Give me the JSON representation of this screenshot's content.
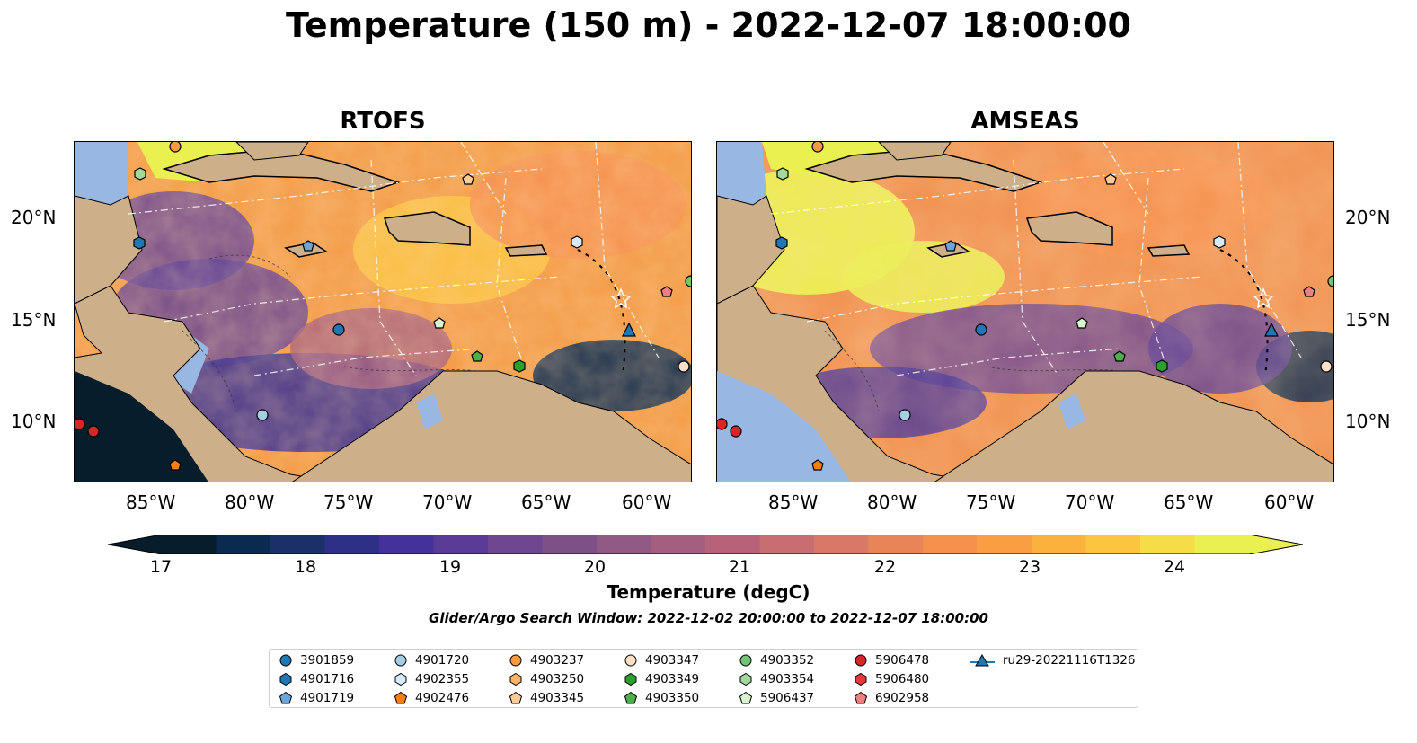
{
  "title": "Temperature (150 m) - 2022-12-07 18:00:00",
  "panels": [
    {
      "title": "RTOFS"
    },
    {
      "title": "AMSEAS"
    }
  ],
  "lon_ticks": [
    "85°W",
    "80°W",
    "75°W",
    "70°W",
    "65°W",
    "60°W"
  ],
  "lat_ticks": [
    "20°N",
    "15°N",
    "10°N"
  ],
  "colorbar": {
    "ticks": [
      "17",
      "18",
      "19",
      "20",
      "21",
      "22",
      "23",
      "24"
    ],
    "label": "Temperature (degC)",
    "range": [
      16.75,
      24.5
    ],
    "colors": [
      "#081d2b",
      "#0b2a4f",
      "#1b3069",
      "#2e2f87",
      "#44319a",
      "#5a3c97",
      "#6d4790",
      "#7e5088",
      "#905a84",
      "#a45e7f",
      "#b6637a",
      "#c86d72",
      "#d97866",
      "#e98459",
      "#f5904d",
      "#f99e43",
      "#fbb13d",
      "#fbc53f",
      "#f6dd47",
      "#eaf04f"
    ]
  },
  "subtitle": "Glider/Argo Search Window: 2022-12-02 20:00:00 to 2022-12-07 18:00:00",
  "legend": [
    {
      "label": "3901859",
      "marker": "circle",
      "color": "#1f77b4"
    },
    {
      "label": "4901716",
      "marker": "hexagon",
      "color": "#1f77b4"
    },
    {
      "label": "4901719",
      "marker": "pentagon",
      "color": "#6aa6d9"
    },
    {
      "label": "4901720",
      "marker": "circle",
      "color": "#a6cee3"
    },
    {
      "label": "4902355",
      "marker": "hexagon",
      "color": "#d6eaf8"
    },
    {
      "label": "4902476",
      "marker": "pentagon",
      "color": "#ff7f0e"
    },
    {
      "label": "4903237",
      "marker": "circle",
      "color": "#fd9a3c"
    },
    {
      "label": "4903250",
      "marker": "hexagon",
      "color": "#fdb462"
    },
    {
      "label": "4903345",
      "marker": "pentagon",
      "color": "#fdcb93"
    },
    {
      "label": "4903347",
      "marker": "circle",
      "color": "#fde0c5"
    },
    {
      "label": "4903349",
      "marker": "hexagon",
      "color": "#2ca02c"
    },
    {
      "label": "4903350",
      "marker": "pentagon",
      "color": "#4daf4a"
    },
    {
      "label": "4903352",
      "marker": "circle",
      "color": "#74c476"
    },
    {
      "label": "4903354",
      "marker": "hexagon",
      "color": "#a1d99b"
    },
    {
      "label": "5906437",
      "marker": "pentagon",
      "color": "#d9f5cf"
    },
    {
      "label": "5906478",
      "marker": "circle",
      "color": "#d62728"
    },
    {
      "label": "5906480",
      "marker": "hexagon",
      "color": "#e7373c"
    },
    {
      "label": "6902958",
      "marker": "pentagon",
      "color": "#f08080"
    },
    {
      "label": "ru29-20221116T1326",
      "marker": "triangle-line",
      "color": "#1f77b4"
    }
  ]
}
